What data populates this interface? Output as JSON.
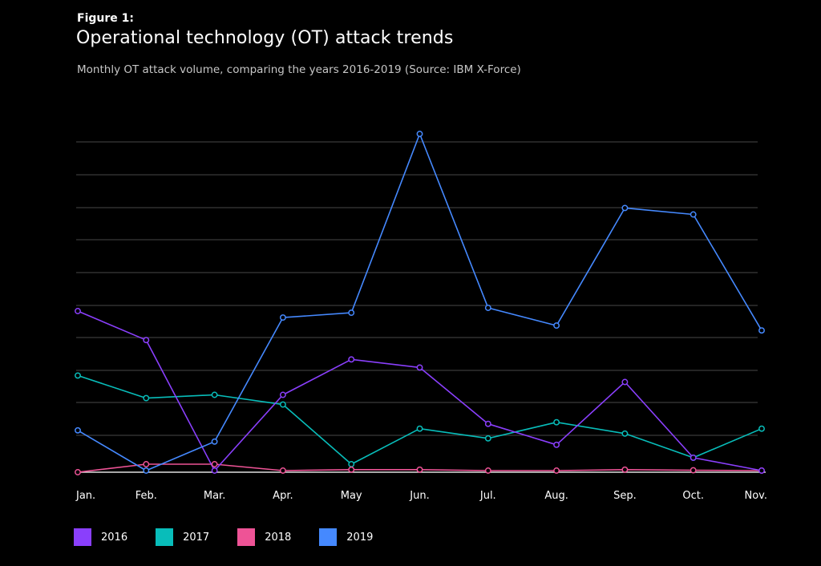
{
  "figure_label": "Figure 1:",
  "title": "Operational technology (OT) attack trends",
  "subtitle": "Monthly OT attack volume, comparing the years 2016-2019 (Source: IBM X-Force)",
  "chart_data": {
    "type": "line",
    "title": "Operational technology (OT) attack trends",
    "subtitle": "Monthly OT attack volume, comparing the years 2016-2019 (Source: IBM X-Force)",
    "xlabel": "",
    "ylabel": "",
    "ylim": [
      0,
      10.5
    ],
    "grid": true,
    "legend_position": "bottom-left",
    "categories": [
      "Jan.",
      "Feb.",
      "Mar.",
      "Apr.",
      "May",
      "Jun.",
      "Jul.",
      "Aug.",
      "Sep.",
      "Oct.",
      "Nov."
    ],
    "series": [
      {
        "name": "2016",
        "color": "#8a3ffc",
        "values": [
          5.0,
          4.1,
          0.05,
          2.4,
          3.5,
          3.25,
          1.5,
          0.85,
          2.8,
          0.45,
          0.05
        ]
      },
      {
        "name": "2017",
        "color": "#08bdba",
        "values": [
          3.0,
          2.3,
          2.4,
          2.1,
          0.25,
          1.35,
          1.05,
          1.55,
          1.2,
          0.45,
          1.35
        ]
      },
      {
        "name": "2018",
        "color": "#ee5396",
        "values": [
          0.0,
          0.25,
          0.25,
          0.05,
          0.08,
          0.08,
          0.05,
          0.05,
          0.08,
          0.06,
          0.05
        ]
      },
      {
        "name": "2019",
        "color": "#4589ff",
        "values": [
          1.3,
          0.05,
          0.95,
          4.8,
          4.95,
          10.5,
          5.1,
          4.55,
          8.2,
          8.0,
          4.4
        ]
      }
    ]
  },
  "legend": [
    {
      "label": "2016",
      "color": "#8a3ffc"
    },
    {
      "label": "2017",
      "color": "#08bdba"
    },
    {
      "label": "2018",
      "color": "#ee5396"
    },
    {
      "label": "2019",
      "color": "#4589ff"
    }
  ]
}
